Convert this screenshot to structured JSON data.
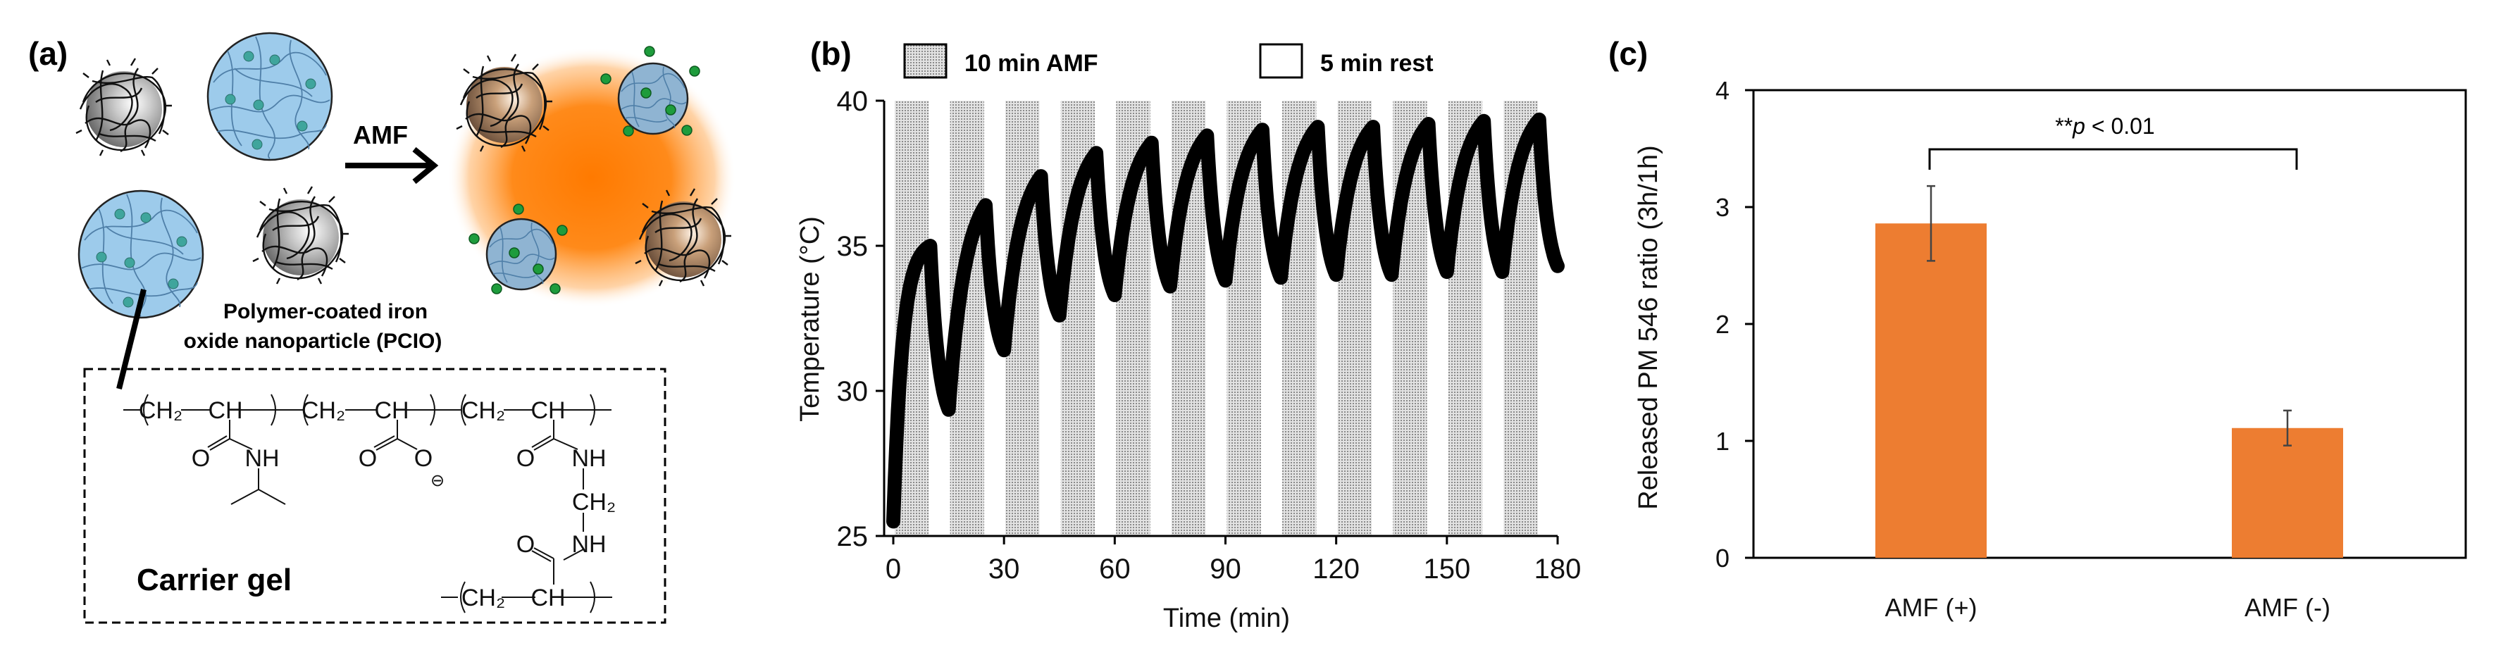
{
  "panel_a": {
    "label": "(a)",
    "arrow_label": "AMF",
    "pcio_line1": "Polymer-coated iron",
    "pcio_line2": "oxide nanoparticle (PCIO)",
    "box_title": "Carrier gel",
    "chem": {
      "ch2": "CH₂",
      "ch": "CH",
      "o": "O",
      "nh": "NH",
      "minus": "⊖"
    },
    "colors": {
      "gel": "#9dcbeb",
      "heat": "#ff8000",
      "drug": "#1e9c3c",
      "dot": "#3fa59c"
    }
  },
  "chart_data": [
    {
      "type": "line",
      "panel_label": "(b)",
      "title": "",
      "xlabel": "Time (min)",
      "ylabel": "Temperature (°C)",
      "xlim": [
        0,
        180
      ],
      "ylim": [
        25,
        40
      ],
      "xticks": [
        0,
        30,
        60,
        90,
        120,
        150,
        180
      ],
      "yticks": [
        25,
        30,
        35,
        40
      ],
      "legend": [
        {
          "label": "10 min AMF",
          "style": "stippled"
        },
        {
          "label": "5 min rest",
          "style": "empty"
        }
      ],
      "legend_placement": "top",
      "amf_on_minutes": 10,
      "rest_minutes": 5,
      "cycles": 12,
      "series": [
        {
          "name": "Temperature",
          "points": [
            [
              0,
              25.5
            ],
            [
              10,
              35.0
            ],
            [
              15,
              29.35
            ],
            [
              25,
              36.4
            ],
            [
              30,
              31.4
            ],
            [
              40,
              37.4
            ],
            [
              45,
              32.6
            ],
            [
              55,
              38.2
            ],
            [
              60,
              33.3
            ],
            [
              70,
              38.55
            ],
            [
              75,
              33.6
            ],
            [
              85,
              38.8
            ],
            [
              90,
              33.8
            ],
            [
              100,
              39.0
            ],
            [
              105,
              33.9
            ],
            [
              115,
              39.1
            ],
            [
              120,
              34.0
            ],
            [
              130,
              39.1
            ],
            [
              135,
              34.0
            ],
            [
              145,
              39.2
            ],
            [
              150,
              34.1
            ],
            [
              160,
              39.3
            ],
            [
              165,
              34.1
            ],
            [
              175,
              39.35
            ],
            [
              180,
              34.3
            ]
          ]
        }
      ]
    },
    {
      "type": "bar",
      "panel_label": "(c)",
      "title": "",
      "xlabel": "",
      "ylabel": "Released PM 546 ratio (3h/1h)",
      "categories": [
        "AMF (+)",
        "AMF (-)"
      ],
      "values": [
        2.86,
        1.11
      ],
      "errors": [
        0.32,
        0.15
      ],
      "ylim": [
        0,
        4
      ],
      "yticks": [
        0,
        1,
        2,
        3,
        4
      ],
      "bar_color": "#ed7d31",
      "annotation": {
        "stars": "**",
        "p": "p",
        "text": " < 0.01"
      }
    }
  ]
}
